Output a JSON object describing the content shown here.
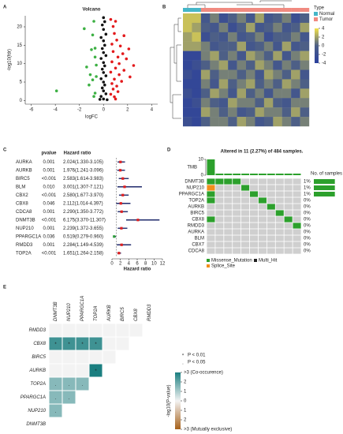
{
  "chart_data": [
    {
      "type": "scatter",
      "label": "A",
      "title": "Volcano",
      "x_label": "logFC",
      "y_label": "-log10(fdr)",
      "xlim": [
        -6.5,
        4.5
      ],
      "ylim": [
        -1,
        23
      ],
      "xticks": [
        -6,
        -4,
        -2,
        0,
        2,
        4
      ],
      "yticks": [
        0,
        5,
        10,
        15,
        20
      ],
      "series": [
        {
          "color": "#3cb043",
          "x": [
            -0.8,
            -1.6,
            -0.9,
            -0.7,
            -1.0,
            -0.7,
            -0.6,
            -1.1,
            -0.9,
            -1.2,
            -3.9,
            -0.7,
            -0.8,
            -1.4,
            -0.6
          ],
          "values": [
            21.5,
            19.5,
            17.8,
            14.2,
            13.8,
            11.8,
            9.6,
            7.0,
            5.6,
            4.2,
            2.6,
            2.0,
            1.1,
            9.1,
            6.5
          ]
        },
        {
          "color": "#111111",
          "x": [
            0.0,
            0.1,
            -0.1,
            0.0,
            0.2,
            -0.2,
            0.0,
            0.1,
            -0.1,
            0.0,
            0.2,
            -0.2,
            0.0,
            0.1,
            -0.1,
            0.0,
            0.2,
            -0.2,
            0.0,
            0.1,
            -0.1,
            0.0,
            0.2,
            -0.2,
            0.0,
            0.3,
            -0.3
          ],
          "values": [
            22.5,
            21.4,
            20.5,
            19.3,
            18.0,
            17.1,
            16.2,
            15.0,
            14.1,
            13.0,
            12.2,
            11.4,
            10.3,
            9.4,
            8.5,
            7.6,
            6.7,
            5.9,
            5.0,
            4.2,
            3.4,
            2.6,
            1.8,
            1.1,
            0.4,
            0.2,
            0.3
          ]
        },
        {
          "color": "#e31a1c",
          "x": [
            0.6,
            1.0,
            0.8,
            0.9,
            1.7,
            1.1,
            0.7,
            1.4,
            2.1,
            0.8,
            1.6,
            1.2,
            1.9,
            0.7,
            1.3,
            2.5,
            1.0,
            1.7,
            0.6,
            1.3,
            2.2,
            0.9,
            1.5,
            0.7,
            1.1,
            0.8,
            1.2,
            0.6,
            0.9,
            1.0
          ],
          "values": [
            22.0,
            21.5,
            20.1,
            18.2,
            17.6,
            16.4,
            15.3,
            14.8,
            14.0,
            13.3,
            12.7,
            11.8,
            11.3,
            10.5,
            10.0,
            9.5,
            8.8,
            8.2,
            7.7,
            7.0,
            6.4,
            5.8,
            5.2,
            4.6,
            3.9,
            3.1,
            2.4,
            1.7,
            1.0,
            0.4
          ]
        }
      ]
    },
    {
      "type": "heatmap",
      "label": "B",
      "clim": [
        -4,
        4
      ],
      "cticks": [
        4,
        2,
        0,
        -2,
        -4
      ],
      "colors": [
        "#2a3f9c",
        "#4d5f86",
        "#f2e24a"
      ],
      "annotation": {
        "title": "Type",
        "names": [
          "Normal",
          "Tumor"
        ],
        "colors": [
          "#45b6c8",
          "#f08a80"
        ],
        "column_group": [
          0,
          0,
          1,
          1,
          1,
          1,
          1,
          1,
          1,
          1,
          1,
          1,
          1,
          1
        ]
      },
      "values": [
        [
          3,
          3,
          -1,
          1,
          -2,
          0,
          1,
          -1,
          2,
          -1,
          0,
          1,
          -2,
          0
        ],
        [
          3,
          2,
          0,
          -1,
          1,
          -2,
          0,
          2,
          -1,
          0,
          1,
          -1,
          0,
          2
        ],
        [
          2,
          3,
          -2,
          0,
          -1,
          1,
          -1,
          0,
          1,
          -2,
          0,
          0,
          1,
          -1
        ],
        [
          2,
          2,
          1,
          -1,
          0,
          0,
          2,
          -1,
          0,
          1,
          -1,
          2,
          -1,
          0
        ],
        [
          -3,
          -3,
          1,
          2,
          0,
          1,
          -1,
          2,
          1,
          0,
          2,
          -1,
          1,
          2
        ],
        [
          -3,
          -2,
          0,
          1,
          2,
          -1,
          1,
          0,
          2,
          1,
          -1,
          1,
          0,
          1
        ],
        [
          -2,
          -3,
          2,
          0,
          1,
          1,
          0,
          1,
          -1,
          2,
          1,
          0,
          2,
          -1
        ],
        [
          -3,
          -3,
          1,
          -1,
          2,
          0,
          1,
          2,
          0,
          1,
          0,
          2,
          1,
          0
        ],
        [
          -2,
          -3,
          0,
          2,
          1,
          -1,
          2,
          0,
          1,
          -1,
          1,
          1,
          -1,
          2
        ],
        [
          -3,
          -2,
          1,
          0,
          -1,
          2,
          1,
          1,
          0,
          2,
          0,
          -1,
          1,
          1
        ],
        [
          -3,
          -3,
          2,
          1,
          0,
          1,
          -1,
          0,
          2,
          1,
          1,
          0,
          2,
          0
        ],
        [
          -2,
          -3,
          0,
          1,
          1,
          0,
          2,
          1,
          -1,
          0,
          2,
          1,
          0,
          1
        ]
      ]
    },
    {
      "type": "forest",
      "label": "C",
      "header": [
        "pvalue",
        "Hazard ratio"
      ],
      "categories": [
        "AURKA",
        "AURKB",
        "BIRC5",
        "BLM",
        "CBX2",
        "CBX8",
        "CDCA8",
        "DNMT3B",
        "NUP210",
        "PPARGC1A",
        "RMDD3",
        "TOP2A"
      ],
      "pvalues": [
        "0.001",
        "0.001",
        "<0.001",
        "0.010",
        "<0.001",
        "0.046",
        "0.001",
        "<0.001",
        "0.001",
        "0.036",
        "0.001",
        "<0.001"
      ],
      "values": [
        2.024,
        1.976,
        2.583,
        3.001,
        2.58,
        2.112,
        2.29,
        6.175,
        2.239,
        0.519,
        2.284,
        1.651
      ],
      "value_labels": [
        "2.024(1.330-3.105)",
        "1.976(1.241-3.096)",
        "2.583(1.614-3.983)",
        "3.001(1.307-7.121)",
        "2.580(1.677-3.970)",
        "2.112(1.014-4.397)",
        "2.290(1.350-3.772)",
        "6.175(3.370-11.307)",
        "2.239(1.372-3.655)",
        "0.519(0.279-0.960)",
        "2.284(1.149-4.539)",
        "1.651(1.264-2.158)"
      ],
      "lower": [
        1.33,
        1.241,
        1.614,
        1.307,
        1.677,
        1.014,
        1.35,
        3.37,
        1.372,
        0.279,
        1.149,
        1.264
      ],
      "upper": [
        3.105,
        3.096,
        3.983,
        7.121,
        3.97,
        4.397,
        3.772,
        11.307,
        3.655,
        0.96,
        4.539,
        2.158
      ],
      "x_label": "Hazard ratio",
      "xlim": [
        0,
        12
      ],
      "xticks": [
        0,
        2,
        4,
        6,
        8,
        10,
        12
      ],
      "reference": 1,
      "colors": {
        "risk": "#e02020",
        "protective": "#2e9e3a",
        "interval": "#1f2a6b"
      }
    },
    {
      "type": "oncoplot",
      "label": "D",
      "title": "Altered in 11 (2.27%) of 484 samples.",
      "tmb_label": "TMB",
      "tmb": [
        10,
        1,
        1,
        1,
        1,
        1,
        1,
        1,
        1,
        1,
        1
      ],
      "tmb_ylim": [
        0,
        10
      ],
      "tmb_yticks": [
        0,
        10
      ],
      "genes": [
        "DNMT3B",
        "NUP210",
        "PPARGC1A",
        "TOP2A",
        "AURKB",
        "BIRC5",
        "CBX8",
        "RMDD3",
        "AURKA",
        "BLM",
        "CBX7",
        "CDCA8"
      ],
      "cells": [
        [
          1,
          1,
          1,
          1,
          0,
          0,
          0,
          0,
          0,
          0,
          0
        ],
        [
          3,
          0,
          0,
          0,
          1,
          0,
          0,
          0,
          0,
          0,
          0
        ],
        [
          1,
          0,
          0,
          0,
          0,
          1,
          0,
          0,
          0,
          0,
          0
        ],
        [
          1,
          0,
          0,
          0,
          0,
          0,
          1,
          0,
          0,
          0,
          0
        ],
        [
          0,
          0,
          0,
          0,
          0,
          0,
          0,
          1,
          0,
          0,
          0
        ],
        [
          0,
          0,
          0,
          0,
          0,
          0,
          0,
          0,
          1,
          0,
          0
        ],
        [
          1,
          0,
          0,
          0,
          0,
          0,
          0,
          0,
          0,
          1,
          0
        ],
        [
          0,
          0,
          0,
          0,
          0,
          0,
          0,
          0,
          0,
          0,
          1
        ],
        [
          0,
          0,
          0,
          0,
          0,
          0,
          0,
          0,
          0,
          0,
          0
        ],
        [
          0,
          0,
          0,
          0,
          0,
          0,
          0,
          0,
          0,
          0,
          0
        ],
        [
          0,
          0,
          0,
          0,
          0,
          0,
          0,
          0,
          0,
          0,
          0
        ],
        [
          0,
          0,
          0,
          0,
          0,
          0,
          0,
          0,
          0,
          0,
          0
        ]
      ],
      "values": [
        1,
        1,
        1,
        0,
        0,
        0,
        0,
        0,
        0,
        0,
        0,
        0
      ],
      "value_labels": [
        "1%",
        "1%",
        "1%",
        "0%",
        "0%",
        "0%",
        "0%",
        "0%",
        "0%",
        "0%",
        "0%",
        "0%"
      ],
      "xlim": [
        0,
        1.2
      ],
      "counts_label": "No. of samples",
      "legend": [
        {
          "name": "Missense_Mutation",
          "color": "#2ca02c"
        },
        {
          "name": "Multi_Hit",
          "color": "#222222"
        },
        {
          "name": "Splice_Site",
          "color": "#f28e1c"
        }
      ],
      "empty_color": "#cfcfcf"
    },
    {
      "type": "triangle",
      "label": "E",
      "rows": [
        "RMDD3",
        "CBX8",
        "BIRC5",
        "AURKB",
        "TOP2A",
        "PPARGC1A",
        "NUP210",
        "DNMT3B"
      ],
      "columns": [
        "DNMT3B",
        "NUP210",
        "PPARGC1A",
        "TOP2A",
        "AURKB",
        "BIRC5",
        "CBX8",
        "RMDD3"
      ],
      "values": [
        [
          0,
          0,
          0,
          0,
          0,
          0,
          0,
          null
        ],
        [
          2.5,
          2.5,
          2.5,
          2.5,
          0,
          0,
          null,
          null
        ],
        [
          0,
          0,
          0,
          0,
          0,
          null,
          null,
          null
        ],
        [
          0,
          0,
          0,
          3,
          null,
          null,
          null,
          null
        ],
        [
          1.5,
          1.5,
          1.5,
          null,
          null,
          null,
          null,
          null
        ],
        [
          1.5,
          1.5,
          null,
          null,
          null,
          null,
          null,
          null
        ],
        [
          1.5,
          null,
          null,
          null,
          null,
          null,
          null,
          null
        ],
        [
          null,
          null,
          null,
          null,
          null,
          null,
          null,
          null
        ]
      ],
      "signif": [
        [
          null,
          null,
          null,
          null,
          null,
          null,
          null,
          null
        ],
        [
          "*",
          "*",
          "*",
          "*",
          null,
          null,
          null,
          null
        ],
        [
          null,
          null,
          null,
          null,
          null,
          null,
          null,
          null
        ],
        [
          null,
          null,
          null,
          "*",
          null,
          null,
          null,
          null
        ],
        [
          ".",
          ".",
          ".",
          null,
          null,
          null,
          null,
          null
        ],
        [
          ".",
          ".",
          null,
          null,
          null,
          null,
          null,
          null
        ],
        [
          ".",
          null,
          null,
          null,
          null,
          null,
          null,
          null
        ],
        [
          null,
          null,
          null,
          null,
          null,
          null,
          null,
          null
        ]
      ],
      "legend": [
        {
          "symbol": "*",
          "label": "P < 0.01"
        },
        {
          "symbol": ".",
          "label": "P < 0.05"
        }
      ],
      "color_label": "-log10(P-value)",
      "clim": [
        -3,
        3
      ],
      "cticks": [
        {
          "value": 3,
          "label": ">3 (Co-occurence)"
        },
        2,
        1,
        0,
        {
          "value": -1,
          "label": "1"
        },
        {
          "value": -2,
          "label": "2"
        },
        {
          "value": -3,
          "label": ">3 (Mutually exclusive)"
        }
      ],
      "colors": [
        "#a6611a",
        "#f3f3f3",
        "#1b7f80"
      ]
    }
  ]
}
